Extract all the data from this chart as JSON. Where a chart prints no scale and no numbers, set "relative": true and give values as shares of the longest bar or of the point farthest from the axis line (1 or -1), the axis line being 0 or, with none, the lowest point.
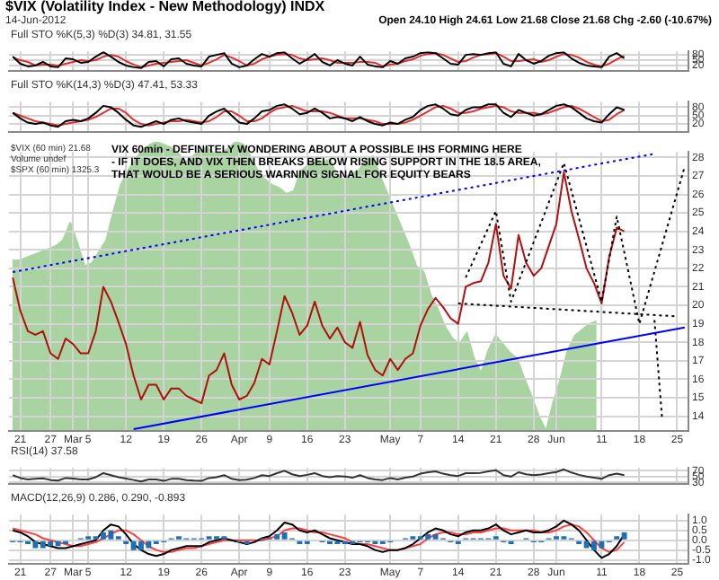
{
  "chart_data": [
    {
      "type": "line",
      "title": "$VIX (Volatility Index - New Methodology) INDX",
      "subtitle": "14-Jun-2012",
      "annotations": [
        "Open 24.10 High 24.61 Low 21.68 Close 21.68 Chg -2.60 (-10.67%)",
        "Full STO %K(5,3) %D(3) 34.81, 31.55"
      ],
      "tick_labels": "y",
      "grid": true,
      "categories": [
        null,
        null,
        null,
        null,
        null,
        null,
        null,
        null,
        null,
        null,
        null,
        null,
        null,
        null,
        null,
        null,
        null,
        null,
        null,
        null,
        null,
        null,
        null,
        null,
        null,
        null,
        null,
        null,
        null,
        null,
        null,
        null,
        null,
        null,
        null,
        null,
        null,
        null,
        null,
        null,
        null,
        null,
        null,
        null,
        null,
        null,
        null,
        null,
        null,
        null,
        null,
        null,
        null,
        null,
        null,
        null,
        null,
        null,
        null,
        null,
        null,
        null,
        null,
        null,
        null,
        null,
        null,
        null,
        null,
        null,
        null,
        null,
        null,
        null,
        null,
        null,
        null,
        null,
        null,
        null,
        null,
        null,
        null,
        null,
        null,
        null,
        null,
        null,
        null,
        null
      ],
      "ylim": [
        -10,
        100
      ],
      "yticks": [
        20,
        50,
        80
      ],
      "series": [
        {
          "color": "#000000",
          "values": [
            70,
            30,
            15,
            20,
            40,
            15,
            10,
            60,
            55,
            35,
            40,
            70,
            95,
            70,
            40,
            20,
            10,
            5,
            40,
            45,
            15,
            55,
            60,
            30,
            20,
            15,
            70,
            80,
            90,
            30,
            10,
            20,
            55,
            85,
            70,
            90,
            95,
            60,
            30,
            55,
            85,
            40,
            20,
            50,
            30,
            20,
            70,
            25,
            15,
            10,
            45,
            30,
            60,
            70,
            90,
            95,
            90,
            60,
            30,
            25,
            80,
            85,
            80,
            90,
            95,
            30,
            15,
            85,
            50,
            30,
            45,
            75,
            90,
            95,
            60,
            35,
            20,
            15,
            10,
            70,
            90,
            60,
            null,
            null,
            null,
            null,
            null,
            null,
            null,
            null
          ]
        },
        {
          "color": "#e03030",
          "values": [
            65,
            50,
            40,
            20,
            25,
            25,
            20,
            30,
            40,
            50,
            45,
            50,
            70,
            80,
            70,
            45,
            25,
            10,
            20,
            30,
            35,
            40,
            45,
            50,
            35,
            20,
            35,
            55,
            80,
            65,
            45,
            20,
            30,
            55,
            70,
            80,
            85,
            80,
            60,
            50,
            55,
            60,
            50,
            35,
            35,
            35,
            40,
            40,
            35,
            15,
            25,
            30,
            45,
            55,
            75,
            85,
            90,
            80,
            60,
            40,
            45,
            65,
            80,
            85,
            90,
            70,
            45,
            45,
            50,
            55,
            40,
            50,
            70,
            85,
            80,
            65,
            40,
            25,
            15,
            30,
            55,
            75,
            null,
            null,
            null,
            null,
            null,
            null,
            null,
            null
          ]
        }
      ]
    },
    {
      "type": "line",
      "title": "Full STO %K(14,3) %D(3) 47.41, 53.33",
      "tick_labels": "y",
      "grid": true,
      "categories": [
        null,
        null,
        null,
        null,
        null,
        null,
        null,
        null,
        null,
        null,
        null,
        null,
        null,
        null,
        null,
        null,
        null,
        null,
        null,
        null,
        null,
        null,
        null,
        null,
        null,
        null,
        null,
        null,
        null,
        null,
        null,
        null,
        null,
        null,
        null,
        null,
        null,
        null,
        null,
        null,
        null,
        null,
        null,
        null,
        null,
        null,
        null,
        null,
        null,
        null,
        null,
        null,
        null,
        null,
        null,
        null,
        null,
        null,
        null,
        null,
        null,
        null,
        null,
        null,
        null,
        null,
        null,
        null,
        null,
        null,
        null,
        null,
        null,
        null,
        null,
        null,
        null,
        null,
        null,
        null,
        null,
        null,
        null,
        null,
        null,
        null,
        null,
        null,
        null,
        null
      ],
      "ylim": [
        -8,
        100
      ],
      "yticks": [
        20,
        50,
        80
      ],
      "series": [
        {
          "color": "#000000",
          "values": [
            60,
            40,
            25,
            20,
            25,
            15,
            10,
            30,
            35,
            30,
            40,
            60,
            85,
            80,
            60,
            35,
            15,
            10,
            20,
            30,
            20,
            35,
            40,
            30,
            25,
            20,
            50,
            65,
            75,
            50,
            25,
            20,
            40,
            65,
            70,
            85,
            90,
            75,
            55,
            60,
            75,
            60,
            40,
            45,
            40,
            30,
            45,
            30,
            20,
            15,
            25,
            20,
            35,
            45,
            70,
            85,
            90,
            75,
            55,
            50,
            70,
            80,
            80,
            90,
            90,
            60,
            45,
            70,
            60,
            50,
            55,
            70,
            85,
            90,
            80,
            60,
            40,
            30,
            25,
            55,
            80,
            70,
            null,
            null,
            null,
            null,
            null,
            null,
            null,
            null
          ]
        },
        {
          "color": "#e03030",
          "values": [
            60,
            50,
            40,
            30,
            25,
            20,
            15,
            20,
            25,
            30,
            35,
            45,
            60,
            75,
            75,
            60,
            35,
            20,
            15,
            20,
            25,
            30,
            30,
            35,
            30,
            25,
            30,
            45,
            65,
            65,
            50,
            30,
            30,
            40,
            60,
            75,
            80,
            85,
            75,
            65,
            65,
            65,
            60,
            50,
            40,
            40,
            40,
            35,
            30,
            20,
            20,
            20,
            25,
            35,
            50,
            65,
            80,
            85,
            75,
            60,
            60,
            65,
            75,
            80,
            85,
            80,
            65,
            60,
            60,
            60,
            55,
            60,
            70,
            80,
            85,
            75,
            60,
            45,
            30,
            35,
            55,
            70,
            null,
            null,
            null,
            null,
            null,
            null,
            null,
            null
          ]
        }
      ]
    },
    {
      "type": "area",
      "relative": true,
      "tick_labels": false,
      "categories": [
        null,
        null,
        null,
        null,
        null,
        null,
        null,
        null,
        null,
        null,
        null,
        null,
        null,
        null,
        null,
        null,
        null,
        null,
        null,
        null,
        null,
        null,
        null,
        null,
        null,
        null,
        null,
        null,
        null,
        null,
        null,
        null,
        null,
        null,
        null,
        null,
        null,
        null,
        null,
        null,
        null,
        null,
        null,
        null,
        null,
        null,
        null,
        null,
        null,
        null,
        null,
        null,
        null,
        null,
        null,
        null,
        null,
        null,
        null,
        null,
        null,
        null,
        null,
        null,
        null,
        null,
        null,
        null,
        null,
        null,
        null,
        null,
        null,
        null,
        null,
        null,
        null,
        null,
        null,
        null,
        null,
        null,
        null,
        null,
        null,
        null,
        null,
        null,
        null,
        null
      ],
      "series": [
        {
          "color": "#a9d3a0",
          "values": [
            0.59,
            0.59,
            0.6,
            0.61,
            0.62,
            0.63,
            0.64,
            0.66,
            0.72,
            0.65,
            0.57,
            0.58,
            0.62,
            0.66,
            0.76,
            0.85,
            0.9,
            0.94,
            0.97,
            0.99,
            1,
            0.99,
            0.98,
            0.96,
            0.93,
            0.95,
            0.97,
            0.98,
            0.96,
            0.96,
            0.98,
            1,
            0.99,
            0.95,
            0.9,
            0.87,
            0.85,
            0.84,
            0.82,
            0.83,
            0.9,
            0.92,
            0.94,
            0.93,
            0.94,
            0.88,
            0.87,
            0.89,
            0.9,
            0.94,
            0.95,
            0.88,
            0.82,
            0.76,
            0.7,
            0.64,
            0.57,
            0.55,
            0.47,
            0.42,
            0.36,
            0.32,
            0.3,
            0.34,
            0.25,
            0.2,
            0.28,
            0.33,
            0.3,
            0.27,
            0.25,
            0.18,
            0.12,
            0.05,
            0,
            0.1,
            0.18,
            0.28,
            0.33,
            0.35,
            0.37,
            0.38,
            null,
            null,
            null,
            null,
            null,
            null,
            null,
            null
          ]
        }
      ]
    },
    {
      "type": "line",
      "grid": true,
      "annotations": [
        "$VIX (60 min) 21.68",
        "Volume undef",
        "$SPX (60 min) 1325.3",
        "VIX 60min - DEFINITELY WONDERING ABOUT A POSSIBLE IHS FORMING HERE",
        "- IF IT DOES, AND VIX THEN BREAKS BELOW RISING SUPPORT IN THE 18.5 AREA,",
        "THAT WOULD BE A SERIOUS WARNING SIGNAL FOR EQUITY BEARS"
      ],
      "categories": [
        null,
        "21",
        null,
        null,
        null,
        "27",
        null,
        null,
        "Mar",
        null,
        "5",
        null,
        null,
        null,
        null,
        "12",
        null,
        null,
        null,
        null,
        "19",
        null,
        null,
        null,
        null,
        "26",
        null,
        null,
        null,
        null,
        "Apr",
        null,
        null,
        null,
        "9",
        null,
        null,
        null,
        null,
        "16",
        null,
        null,
        null,
        null,
        "23",
        null,
        null,
        null,
        null,
        null,
        "May",
        null,
        null,
        null,
        "7",
        null,
        null,
        null,
        null,
        "14",
        null,
        null,
        null,
        null,
        "21",
        null,
        null,
        null,
        null,
        "28",
        null,
        null,
        "Jun",
        null,
        null,
        null,
        null,
        null,
        "11",
        null,
        null,
        null,
        null,
        "18",
        null,
        null,
        null,
        null,
        "25",
        null
      ],
      "ylim": [
        13.2,
        28.3
      ],
      "yticks": [
        14,
        15,
        16,
        17,
        18,
        19,
        20,
        21,
        22,
        23,
        24,
        25,
        26,
        27,
        28
      ],
      "series": [
        {
          "color": "#0000ff",
          "line_style": "dotted",
          "values": [
            21.8,
            null,
            null,
            null,
            null,
            null,
            null,
            null,
            null,
            null,
            null,
            null,
            null,
            null,
            null,
            null,
            null,
            null,
            null,
            null,
            null,
            null,
            null,
            null,
            null,
            null,
            null,
            null,
            null,
            null,
            null,
            null,
            null,
            null,
            null,
            null,
            null,
            null,
            null,
            null,
            null,
            null,
            null,
            null,
            null,
            null,
            null,
            null,
            null,
            null,
            null,
            null,
            null,
            null,
            null,
            null,
            null,
            null,
            null,
            null,
            null,
            null,
            null,
            null,
            null,
            null,
            null,
            null,
            null,
            null,
            null,
            null,
            null,
            null,
            null,
            null,
            null,
            null,
            null,
            null,
            null,
            null,
            null,
            null,
            null,
            28.2,
            null,
            null,
            null,
            null
          ]
        },
        {
          "color": "#0000ff",
          "values": [
            null,
            null,
            null,
            null,
            null,
            null,
            null,
            null,
            null,
            null,
            null,
            null,
            null,
            null,
            null,
            null,
            13.3,
            null,
            null,
            null,
            null,
            null,
            null,
            null,
            null,
            null,
            null,
            null,
            null,
            null,
            null,
            null,
            null,
            null,
            null,
            null,
            null,
            null,
            null,
            null,
            null,
            null,
            null,
            null,
            null,
            null,
            null,
            null,
            null,
            null,
            null,
            null,
            null,
            null,
            null,
            null,
            null,
            null,
            null,
            null,
            null,
            null,
            null,
            null,
            null,
            null,
            null,
            null,
            null,
            null,
            null,
            null,
            null,
            null,
            null,
            null,
            null,
            null,
            null,
            null,
            null,
            null,
            null,
            null,
            null,
            null,
            null,
            null,
            null,
            18.8
          ]
        },
        {
          "color": "#000000",
          "line_style": "dotted",
          "values": [
            null,
            null,
            null,
            null,
            null,
            null,
            null,
            null,
            null,
            null,
            null,
            null,
            null,
            null,
            null,
            null,
            null,
            null,
            null,
            null,
            null,
            null,
            null,
            null,
            null,
            null,
            null,
            null,
            null,
            null,
            null,
            null,
            null,
            null,
            null,
            null,
            null,
            null,
            null,
            null,
            null,
            null,
            null,
            null,
            null,
            null,
            null,
            null,
            null,
            null,
            null,
            null,
            null,
            null,
            null,
            null,
            null,
            null,
            null,
            20.1,
            null,
            null,
            null,
            null,
            null,
            null,
            null,
            null,
            null,
            null,
            null,
            null,
            null,
            null,
            null,
            null,
            null,
            null,
            null,
            null,
            null,
            null,
            null,
            null,
            null,
            null,
            null,
            null,
            19.4,
            null
          ]
        },
        {
          "color": "#000000",
          "line_style": "dotted",
          "values": [
            null,
            null,
            null,
            null,
            null,
            null,
            null,
            null,
            null,
            null,
            null,
            null,
            null,
            null,
            null,
            null,
            null,
            null,
            null,
            null,
            null,
            null,
            null,
            null,
            null,
            null,
            null,
            null,
            null,
            null,
            null,
            null,
            null,
            null,
            null,
            null,
            null,
            null,
            null,
            null,
            null,
            null,
            null,
            null,
            null,
            null,
            null,
            null,
            null,
            null,
            null,
            null,
            null,
            null,
            null,
            null,
            null,
            null,
            null,
            null,
            21.5,
            null,
            null,
            null,
            25.1,
            null,
            20.2,
            null,
            null,
            null,
            null,
            null,
            null,
            27.7,
            null,
            null,
            null,
            null,
            20.2,
            null,
            24.8,
            null,
            null,
            19.0,
            null,
            null,
            null,
            null,
            null,
            27.5
          ]
        },
        {
          "color": "#000000",
          "line_style": "dotted",
          "values": [
            null,
            null,
            null,
            null,
            null,
            null,
            null,
            null,
            null,
            null,
            null,
            null,
            null,
            null,
            null,
            null,
            null,
            null,
            null,
            null,
            null,
            null,
            null,
            null,
            null,
            null,
            null,
            null,
            null,
            null,
            null,
            null,
            null,
            null,
            null,
            null,
            null,
            null,
            null,
            null,
            null,
            null,
            null,
            null,
            null,
            null,
            null,
            null,
            null,
            null,
            null,
            null,
            null,
            null,
            null,
            null,
            null,
            null,
            null,
            null,
            null,
            null,
            null,
            null,
            null,
            null,
            null,
            null,
            null,
            null,
            null,
            null,
            null,
            null,
            null,
            null,
            null,
            null,
            null,
            null,
            null,
            null,
            null,
            null,
            null,
            19.2,
            13.9,
            null,
            null,
            null
          ]
        },
        {
          "color": "#b01010",
          "values": [
            21.5,
            19.7,
            18.6,
            18.4,
            18.6,
            17.4,
            17.1,
            18.2,
            17.9,
            17.4,
            17.4,
            18.6,
            21.0,
            20.2,
            19.1,
            17.9,
            16.2,
            14.9,
            15.7,
            15.7,
            14.9,
            15.5,
            15.5,
            15.1,
            14.9,
            14.7,
            16.2,
            16.5,
            17.4,
            15.7,
            14.9,
            15.1,
            15.8,
            17.1,
            16.8,
            18.6,
            20.5,
            19.6,
            18.4,
            18.9,
            20.2,
            18.9,
            18.2,
            18.8,
            18.0,
            17.7,
            19.1,
            17.3,
            16.5,
            16.2,
            17.1,
            16.5,
            17.1,
            17.4,
            18.9,
            19.8,
            20.4,
            19.9,
            19.3,
            19.0,
            21.0,
            21.2,
            21.3,
            22.3,
            24.4,
            21.6,
            20.9,
            23.8,
            22.3,
            21.6,
            22.0,
            23.2,
            24.4,
            27.2,
            25.1,
            23.6,
            22.0,
            21.2,
            20.1,
            22.6,
            24.2,
            24.0,
            null,
            null,
            null,
            null,
            null,
            null,
            null,
            null
          ]
        }
      ]
    },
    {
      "type": "line",
      "title": "RSI(14) 37.58",
      "tick_labels": "y",
      "grid": true,
      "categories": [
        null,
        null,
        null,
        null,
        null,
        null,
        null,
        null,
        null,
        null,
        null,
        null,
        null,
        null,
        null,
        null,
        null,
        null,
        null,
        null,
        null,
        null,
        null,
        null,
        null,
        null,
        null,
        null,
        null,
        null,
        null,
        null,
        null,
        null,
        null,
        null,
        null,
        null,
        null,
        null,
        null,
        null,
        null,
        null,
        null,
        null,
        null,
        null,
        null,
        null,
        null,
        null,
        null,
        null,
        null,
        null,
        null,
        null,
        null,
        null,
        null,
        null,
        null,
        null,
        null,
        null,
        null,
        null,
        null,
        null,
        null,
        null,
        null,
        null,
        null,
        null,
        null,
        null,
        null,
        null,
        null,
        null,
        null,
        null,
        null,
        null,
        null,
        null,
        null,
        null
      ],
      "ylim": [
        25,
        80
      ],
      "yticks": [
        30,
        50,
        70
      ],
      "series": [
        {
          "color": "#333333",
          "values": [
            55,
            45,
            40,
            42,
            44,
            38,
            36,
            45,
            43,
            40,
            40,
            48,
            62,
            55,
            48,
            43,
            38,
            33,
            40,
            40,
            35,
            42,
            42,
            38,
            36,
            35,
            45,
            48,
            55,
            42,
            38,
            39,
            45,
            55,
            52,
            62,
            70,
            58,
            52,
            56,
            62,
            52,
            48,
            52,
            50,
            46,
            55,
            45,
            40,
            38,
            45,
            40,
            46,
            50,
            60,
            65,
            68,
            60,
            55,
            52,
            62,
            62,
            63,
            68,
            72,
            55,
            50,
            65,
            58,
            55,
            57,
            62,
            66,
            75,
            64,
            56,
            50,
            46,
            42,
            55,
            60,
            55,
            null,
            null,
            null,
            null,
            null,
            null,
            null,
            null
          ]
        }
      ]
    },
    {
      "type": "line",
      "title": "MACD(12,26,9) 0.286, 0.290, -0.893",
      "grid": true,
      "categories": [
        null,
        "21",
        null,
        null,
        null,
        "27",
        null,
        null,
        "Mar",
        null,
        "5",
        null,
        null,
        null,
        null,
        "12",
        null,
        null,
        null,
        null,
        "19",
        null,
        null,
        null,
        null,
        "26",
        null,
        null,
        null,
        null,
        "Apr",
        null,
        null,
        null,
        "9",
        null,
        null,
        null,
        null,
        "16",
        null,
        null,
        null,
        null,
        "23",
        null,
        null,
        null,
        null,
        null,
        "May",
        null,
        null,
        null,
        "7",
        null,
        null,
        null,
        null,
        "14",
        null,
        null,
        null,
        null,
        "21",
        null,
        null,
        null,
        null,
        "28",
        null,
        null,
        "Jun",
        null,
        null,
        null,
        null,
        null,
        "11",
        null,
        null,
        null,
        null,
        "18",
        null,
        null,
        null,
        null,
        "25",
        null
      ],
      "ylim": [
        -1.2,
        1.3
      ],
      "yticks": [
        {
          "value": -1,
          "label": "-1.0"
        },
        {
          "value": -0.5,
          "label": "-0.5"
        },
        {
          "value": 0,
          "label": "0.0"
        },
        {
          "value": 0.5,
          "label": "0.5"
        },
        {
          "value": 1,
          "label": "1.0"
        }
      ],
      "series": [
        {
          "type": "bar",
          "color": "#1f6fb4",
          "values": [
            -0.1,
            -0.1,
            -0.2,
            -0.4,
            -0.4,
            -0.3,
            -0.3,
            -0.2,
            0,
            0.1,
            0.2,
            0.2,
            0.4,
            0.5,
            0.2,
            -0.2,
            -0.5,
            -0.5,
            -0.4,
            -0.2,
            -0.1,
            0.1,
            0.2,
            0.1,
            0.1,
            0.1,
            0.2,
            0.2,
            0.2,
            0,
            -0.1,
            -0.2,
            0,
            0.1,
            0.1,
            0.3,
            0.4,
            0.1,
            -0.2,
            -0.2,
            0,
            -0.1,
            -0.2,
            -0.2,
            -0.2,
            -0.2,
            -0.1,
            -0.1,
            -0.2,
            -0.2,
            -0.1,
            0,
            0.1,
            0.2,
            0.2,
            0.3,
            0.3,
            0.1,
            -0.1,
            -0.2,
            0.1,
            0.1,
            0.1,
            0.1,
            0.2,
            -0.1,
            -0.2,
            0,
            0.1,
            -0.1,
            -0.1,
            0.1,
            0.2,
            0.2,
            0.1,
            -0.2,
            -0.4,
            -0.5,
            -0.4,
            -0.1,
            0.2,
            0.4,
            null,
            null,
            null,
            null,
            null,
            null,
            null,
            null
          ]
        },
        {
          "color": "#000000",
          "values": [
            0.5,
            0.4,
            0.2,
            -0.1,
            -0.2,
            -0.3,
            -0.4,
            -0.4,
            -0.3,
            -0.2,
            -0.1,
            0,
            0.5,
            0.8,
            0.7,
            0.3,
            -0.2,
            -0.5,
            -0.7,
            -0.8,
            -0.7,
            -0.5,
            -0.4,
            -0.3,
            -0.3,
            -0.3,
            -0.1,
            0,
            0.1,
            0,
            -0.1,
            -0.2,
            -0.1,
            0.1,
            0.2,
            0.5,
            0.9,
            0.8,
            0.5,
            0.4,
            0.5,
            0.3,
            0.1,
            0,
            -0.1,
            -0.2,
            -0.2,
            -0.3,
            -0.5,
            -0.6,
            -0.5,
            -0.5,
            -0.4,
            -0.2,
            0.1,
            0.4,
            0.6,
            0.5,
            0.3,
            0.2,
            0.4,
            0.5,
            0.5,
            0.6,
            0.8,
            0.5,
            0.3,
            0.4,
            0.5,
            0.4,
            0.4,
            0.5,
            0.7,
            1,
            0.8,
            0.5,
            0,
            -0.5,
            -0.9,
            -0.7,
            -0.3,
            0.3,
            null,
            null,
            null,
            null,
            null,
            null,
            null,
            null
          ]
        },
        {
          "color": "#ff4040",
          "values": [
            0.6,
            0.5,
            0.4,
            0.3,
            0.1,
            0,
            -0.1,
            -0.2,
            -0.3,
            -0.3,
            -0.2,
            -0.1,
            0.1,
            0.3,
            0.5,
            0.5,
            0.3,
            0,
            -0.3,
            -0.5,
            -0.6,
            -0.6,
            -0.5,
            -0.4,
            -0.4,
            -0.3,
            -0.2,
            -0.1,
            0,
            0,
            0,
            0,
            0,
            0,
            0.1,
            0.2,
            0.5,
            0.6,
            0.6,
            0.5,
            0.4,
            0.4,
            0.3,
            0.2,
            0.1,
            -0.1,
            -0.2,
            -0.2,
            -0.3,
            -0.4,
            -0.5,
            -0.5,
            -0.4,
            -0.3,
            -0.2,
            0.1,
            0.3,
            0.4,
            0.4,
            0.3,
            0.3,
            0.4,
            0.4,
            0.5,
            0.6,
            0.6,
            0.5,
            0.5,
            0.5,
            0.5,
            0.4,
            0.4,
            0.5,
            0.7,
            0.8,
            0.7,
            0.4,
            0,
            -0.4,
            -0.6,
            -0.5,
            -0.1,
            null,
            null,
            null,
            null,
            null,
            null,
            null,
            null
          ]
        }
      ]
    }
  ]
}
